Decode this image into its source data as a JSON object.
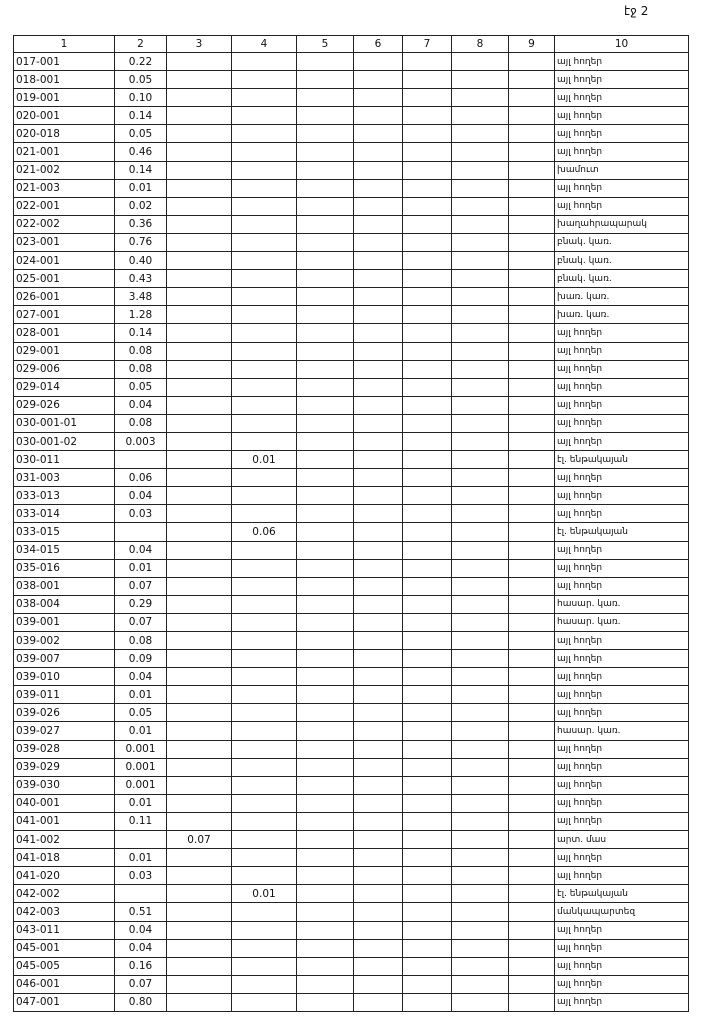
{
  "header": {
    "page": "էջ 2",
    "columns": [
      "1",
      "2",
      "3",
      "4",
      "5",
      "6",
      "7",
      "8",
      "9",
      "10"
    ]
  },
  "table": {
    "rows": [
      {
        "id": "017-001",
        "c2": "0.22",
        "c10": "այլ հողեր"
      },
      {
        "id": "018-001",
        "c2": "0.05",
        "c10": "այլ հողեր"
      },
      {
        "id": "019-001",
        "c2": "0.10",
        "c10": "այլ հողեր"
      },
      {
        "id": "020-001",
        "c2": "0.14",
        "c10": "այլ հողեր"
      },
      {
        "id": "020-018",
        "c2": "0.05",
        "c10": "այլ հողեր"
      },
      {
        "id": "021-001",
        "c2": "0.46",
        "c10": "այլ հողեր"
      },
      {
        "id": "021-002",
        "c2": "0.14",
        "c10": "խամուտ"
      },
      {
        "id": "021-003",
        "c2": "0.01",
        "c10": "այլ հողեր"
      },
      {
        "id": "022-001",
        "c2": "0.02",
        "c10": "այլ հողեր"
      },
      {
        "id": "022-002",
        "c2": "0.36",
        "c10": "խաղահրապարակ"
      },
      {
        "id": "023-001",
        "c2": "0.76",
        "c10": "բնակ. կառ."
      },
      {
        "id": "024-001",
        "c2": "0.40",
        "c10": "բնակ. կառ."
      },
      {
        "id": "025-001",
        "c2": "0.43",
        "c10": "բնակ. կառ."
      },
      {
        "id": "026-001",
        "c2": "3.48",
        "c10": "խառ. կառ."
      },
      {
        "id": "027-001",
        "c2": "1.28",
        "c10": "խառ. կառ."
      },
      {
        "id": "028-001",
        "c2": "0.14",
        "c10": "այլ հողեր"
      },
      {
        "id": "029-001",
        "c2": "0.08",
        "c10": "այլ հողեր"
      },
      {
        "id": "029-006",
        "c2": "0.08",
        "c10": "այլ հողեր"
      },
      {
        "id": "029-014",
        "c2": "0.05",
        "c10": "այլ հողեր"
      },
      {
        "id": "029-026",
        "c2": "0.04",
        "c10": "այլ հողեր"
      },
      {
        "id": "030-001-01",
        "c2": "0.08",
        "c10": "այլ հողեր"
      },
      {
        "id": "030-001-02",
        "c2": "0.003",
        "c10": "այլ հողեր"
      },
      {
        "id": "030-011",
        "c4": "0.01",
        "c10": "էլ. ենթակայան"
      },
      {
        "id": "031-003",
        "c2": "0.06",
        "c10": "այլ հողեր"
      },
      {
        "id": "033-013",
        "c2": "0.04",
        "c10": "այլ հողեր"
      },
      {
        "id": "033-014",
        "c2": "0.03",
        "c10": "այլ հողեր"
      },
      {
        "id": "033-015",
        "c4": "0.06",
        "c10": "էլ. ենթակայան"
      },
      {
        "id": "034-015",
        "c2": "0.04",
        "c10": "այլ հողեր"
      },
      {
        "id": "035-016",
        "c2": "0.01",
        "c10": "այլ հողեր"
      },
      {
        "id": "038-001",
        "c2": "0.07",
        "c10": "այլ հողեր"
      },
      {
        "id": "038-004",
        "c2": "0.29",
        "c10": "հասար. կառ."
      },
      {
        "id": "039-001",
        "c2": "0.07",
        "c10": "հասար. կառ."
      },
      {
        "id": "039-002",
        "c2": "0.08",
        "c10": "այլ հողեր"
      },
      {
        "id": "039-007",
        "c2": "0.09",
        "c10": "այլ հողեր"
      },
      {
        "id": "039-010",
        "c2": "0.04",
        "c10": "այլ հողեր"
      },
      {
        "id": "039-011",
        "c2": "0.01",
        "c10": "այլ հողեր"
      },
      {
        "id": "039-026",
        "c2": "0.05",
        "c10": "այլ հողեր"
      },
      {
        "id": "039-027",
        "c2": "0.01",
        "c10": "հասար. կառ."
      },
      {
        "id": "039-028",
        "c2": "0.001",
        "c10": "այլ հողեր"
      },
      {
        "id": "039-029",
        "c2": "0.001",
        "c10": "այլ հողեր"
      },
      {
        "id": "039-030",
        "c2": "0.001",
        "c10": "այլ հողեր"
      },
      {
        "id": "040-001",
        "c2": "0.01",
        "c10": "այլ հողեր"
      },
      {
        "id": "041-001",
        "c2": "0.11",
        "c10": "այլ հողեր"
      },
      {
        "id": "041-002",
        "c3": "0.07",
        "c10": "արտ. մաս"
      },
      {
        "id": "041-018",
        "c2": "0.01",
        "c10": "այլ հողեր"
      },
      {
        "id": "041-020",
        "c2": "0.03",
        "c10": "այլ հողեր"
      },
      {
        "id": "042-002",
        "c4": "0.01",
        "c10": "էլ. ենթակայան"
      },
      {
        "id": "042-003",
        "c2": "0.51",
        "c10": "մանկապարտեզ"
      },
      {
        "id": "043-011",
        "c2": "0.04",
        "c10": "այլ հողեր"
      },
      {
        "id": "045-001",
        "c2": "0.04",
        "c10": "այլ հողեր"
      },
      {
        "id": "045-005",
        "c2": "0.16",
        "c10": "այլ հողեր"
      },
      {
        "id": "046-001",
        "c2": "0.07",
        "c10": "այլ հողեր"
      },
      {
        "id": "047-001",
        "c2": "0.80",
        "c10": "այլ հողեր"
      }
    ]
  }
}
